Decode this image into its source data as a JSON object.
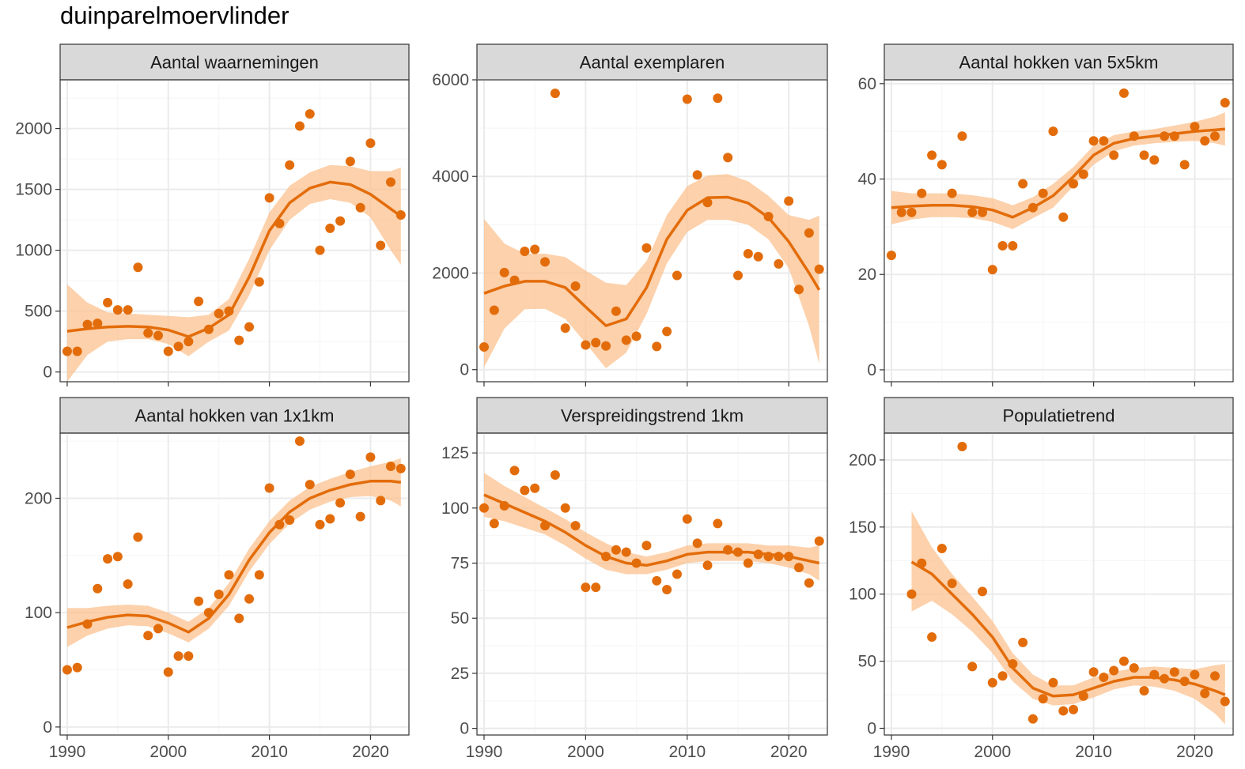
{
  "title": "duinparelmoervlinder",
  "colors": {
    "point": "#e36c0a",
    "line": "#e36c0a",
    "ribbon": "#fbc18f",
    "strip": "#d9d9d9",
    "grid_major": "#ebebeb",
    "grid_minor": "#f5f5f5"
  },
  "chart_data": [
    {
      "type": "scatter",
      "title": "Aantal waarnemingen",
      "xlim": [
        1989.3,
        2023.8
      ],
      "ylim": [
        -80,
        2400
      ],
      "xticks": [
        1990,
        2000,
        2010,
        2020
      ],
      "yticks": [
        0,
        500,
        1000,
        1500,
        2000
      ],
      "points": {
        "x": [
          1990,
          1991,
          1992,
          1993,
          1994,
          1995,
          1996,
          1997,
          1998,
          1999,
          2000,
          2001,
          2002,
          2003,
          2004,
          2005,
          2006,
          2007,
          2008,
          2009,
          2010,
          2011,
          2012,
          2013,
          2014,
          2015,
          2016,
          2017,
          2018,
          2019,
          2020,
          2021,
          2022,
          2023
        ],
        "y": [
          170,
          170,
          390,
          400,
          570,
          510,
          510,
          860,
          320,
          300,
          170,
          210,
          250,
          580,
          350,
          480,
          500,
          260,
          370,
          740,
          1430,
          1220,
          1700,
          2020,
          2120,
          1000,
          1180,
          1240,
          1730,
          1350,
          1880,
          1040,
          1560,
          1290
        ]
      },
      "trend": {
        "x": [
          1990,
          1992,
          1994,
          1996,
          1998,
          2000,
          2002,
          2004,
          2006,
          2008,
          2010,
          2012,
          2014,
          2016,
          2018,
          2020,
          2022,
          2023
        ],
        "y": [
          335,
          355,
          370,
          375,
          370,
          345,
          290,
          360,
          470,
          780,
          1160,
          1390,
          1510,
          1560,
          1540,
          1460,
          1340,
          1280
        ],
        "lower": [
          -80,
          140,
          250,
          270,
          270,
          230,
          130,
          250,
          340,
          630,
          1000,
          1250,
          1380,
          1420,
          1390,
          1270,
          1000,
          880
        ],
        "upper": [
          720,
          570,
          490,
          480,
          470,
          460,
          450,
          470,
          600,
          930,
          1310,
          1530,
          1640,
          1700,
          1690,
          1650,
          1650,
          1680
        ]
      }
    },
    {
      "type": "scatter",
      "title": "Aantal exemplaren",
      "xlim": [
        1989.3,
        2023.8
      ],
      "ylim": [
        -250,
        6000
      ],
      "xticks": [
        1990,
        2000,
        2010,
        2020
      ],
      "yticks": [
        0,
        2000,
        4000,
        6000
      ],
      "points": {
        "x": [
          1990,
          1991,
          1992,
          1993,
          1994,
          1995,
          1996,
          1997,
          1998,
          1999,
          2000,
          2001,
          2002,
          2003,
          2004,
          2005,
          2006,
          2007,
          2008,
          2009,
          2010,
          2011,
          2012,
          2013,
          2014,
          2015,
          2016,
          2017,
          2018,
          2019,
          2020,
          2021,
          2022,
          2023
        ],
        "y": [
          470,
          1230,
          2010,
          1850,
          2450,
          2490,
          2230,
          5720,
          860,
          1730,
          510,
          560,
          490,
          1210,
          610,
          690,
          2520,
          480,
          790,
          1950,
          5600,
          4030,
          3460,
          5620,
          4390,
          1950,
          2400,
          2340,
          3170,
          2190,
          3490,
          1660,
          2830,
          2080
        ]
      },
      "trend": {
        "x": [
          1990,
          1992,
          1994,
          1996,
          1998,
          2000,
          2002,
          2004,
          2006,
          2008,
          2010,
          2012,
          2014,
          2016,
          2018,
          2020,
          2022,
          2023
        ],
        "y": [
          1580,
          1730,
          1830,
          1830,
          1700,
          1300,
          910,
          1050,
          1700,
          2700,
          3300,
          3560,
          3570,
          3450,
          3150,
          2650,
          2000,
          1650
        ],
        "lower": [
          50,
          850,
          1250,
          1260,
          1050,
          550,
          30,
          350,
          1150,
          2200,
          2850,
          3100,
          3100,
          3000,
          2700,
          2100,
          900,
          120
        ],
        "upper": [
          3120,
          2610,
          2400,
          2400,
          2330,
          2050,
          1800,
          1750,
          2250,
          3200,
          3800,
          4020,
          4050,
          3900,
          3600,
          3200,
          3100,
          3190
        ]
      }
    },
    {
      "type": "scatter",
      "title": "Aantal hokken van 5x5km",
      "xlim": [
        1989.3,
        2023.8
      ],
      "ylim": [
        -2.5,
        60.8
      ],
      "xticks": [
        1990,
        2000,
        2010,
        2020
      ],
      "yticks": [
        0,
        20,
        40,
        60
      ],
      "points": {
        "x": [
          1990,
          1991,
          1992,
          1993,
          1994,
          1995,
          1996,
          1997,
          1998,
          1999,
          2000,
          2001,
          2002,
          2003,
          2004,
          2005,
          2006,
          2007,
          2008,
          2009,
          2010,
          2011,
          2012,
          2013,
          2014,
          2015,
          2016,
          2017,
          2018,
          2019,
          2020,
          2021,
          2022,
          2023
        ],
        "y": [
          24,
          33,
          33,
          37,
          45,
          43,
          37,
          49,
          33,
          33,
          21,
          26,
          26,
          39,
          34,
          37,
          50,
          32,
          39,
          41,
          48,
          48,
          45,
          58,
          49,
          45,
          44,
          49,
          49,
          43,
          51,
          48,
          49,
          56
        ]
      },
      "trend": {
        "x": [
          1990,
          1992,
          1994,
          1996,
          1998,
          2000,
          2002,
          2004,
          2006,
          2008,
          2010,
          2012,
          2014,
          2016,
          2018,
          2020,
          2022,
          2023
        ],
        "y": [
          34,
          34.3,
          34.5,
          34.5,
          34.2,
          33.5,
          32,
          34,
          36.5,
          40.5,
          45,
          47.5,
          48.5,
          49,
          49.5,
          50,
          50.3,
          50.5
        ],
        "lower": [
          30.5,
          31.5,
          32,
          32,
          31.8,
          31,
          29.5,
          31.8,
          34,
          38.5,
          43,
          45.8,
          47,
          47.5,
          47.8,
          48,
          47.5,
          47
        ],
        "upper": [
          37.5,
          37,
          37,
          37,
          36.6,
          36,
          34.5,
          36.2,
          39,
          42.5,
          47,
          49.2,
          50,
          50.5,
          51.2,
          52,
          53.1,
          54
        ]
      }
    },
    {
      "type": "scatter",
      "title": "Aantal hokken van 1x1km",
      "xlim": [
        1989.3,
        2023.8
      ],
      "ylim": [
        -7,
        257
      ],
      "xticks": [
        1990,
        2000,
        2010,
        2020
      ],
      "yticks": [
        0,
        100,
        200
      ],
      "points": {
        "x": [
          1990,
          1991,
          1992,
          1993,
          1994,
          1995,
          1996,
          1997,
          1998,
          1999,
          2000,
          2001,
          2002,
          2003,
          2004,
          2005,
          2006,
          2007,
          2008,
          2009,
          2010,
          2011,
          2012,
          2013,
          2014,
          2015,
          2016,
          2017,
          2018,
          2019,
          2020,
          2021,
          2022,
          2023
        ],
        "y": [
          50,
          52,
          90,
          121,
          147,
          149,
          125,
          166,
          80,
          86,
          48,
          62,
          62,
          110,
          100,
          116,
          133,
          95,
          112,
          133,
          209,
          177,
          181,
          250,
          212,
          177,
          182,
          196,
          221,
          184,
          236,
          198,
          228,
          226
        ]
      },
      "trend": {
        "x": [
          1990,
          1992,
          1994,
          1996,
          1998,
          2000,
          2002,
          2004,
          2006,
          2008,
          2010,
          2012,
          2014,
          2016,
          2018,
          2020,
          2022,
          2023
        ],
        "y": [
          87,
          92,
          96,
          98,
          97,
          91,
          83,
          95,
          116,
          146,
          170,
          188,
          200,
          207,
          212,
          215,
          215,
          214
        ],
        "lower": [
          70,
          80,
          86,
          89,
          88,
          82,
          74,
          86,
          106,
          136,
          160,
          178,
          190,
          197,
          201,
          202,
          198,
          193
        ],
        "upper": [
          104,
          104,
          106,
          107,
          106,
          100,
          92,
          104,
          126,
          156,
          180,
          198,
          210,
          217,
          223,
          228,
          232,
          235
        ]
      }
    },
    {
      "type": "scatter",
      "title": "Verspreidingstrend 1km",
      "xlim": [
        1989.3,
        2023.8
      ],
      "ylim": [
        -3,
        134
      ],
      "xticks": [
        1990,
        2000,
        2010,
        2020
      ],
      "yticks": [
        0,
        25,
        50,
        75,
        100,
        125
      ],
      "points": {
        "x": [
          1990,
          1991,
          1992,
          1993,
          1994,
          1995,
          1996,
          1997,
          1998,
          1999,
          2000,
          2001,
          2002,
          2003,
          2004,
          2005,
          2006,
          2007,
          2008,
          2009,
          2010,
          2011,
          2012,
          2013,
          2014,
          2015,
          2016,
          2017,
          2018,
          2019,
          2020,
          2021,
          2022,
          2023
        ],
        "y": [
          100,
          93,
          101,
          117,
          108,
          109,
          92,
          115,
          100,
          92,
          64,
          64,
          78,
          81,
          80,
          75,
          83,
          67,
          63,
          70,
          95,
          84,
          74,
          93,
          81,
          80,
          75,
          79,
          78,
          78,
          78,
          73,
          66,
          85
        ]
      },
      "trend": {
        "x": [
          1990,
          1992,
          1994,
          1996,
          1998,
          2000,
          2002,
          2004,
          2006,
          2008,
          2010,
          2012,
          2014,
          2016,
          2018,
          2020,
          2022,
          2023
        ],
        "y": [
          106,
          102,
          98,
          94,
          89,
          83,
          78,
          75,
          74,
          76,
          79,
          80,
          80,
          80,
          79,
          78,
          76,
          75
        ],
        "lower": [
          96,
          94,
          91,
          88,
          83,
          77,
          72,
          70,
          70,
          72,
          75,
          76,
          76,
          76,
          75,
          73,
          70,
          67
        ],
        "upper": [
          116,
          110,
          105,
          100,
          95,
          89,
          84,
          80,
          78,
          80,
          83,
          84,
          84,
          84,
          83,
          83,
          82,
          83
        ]
      }
    },
    {
      "type": "scatter",
      "title": "Populatietrend",
      "xlim": [
        1989.3,
        2023.8
      ],
      "ylim": [
        -5,
        220
      ],
      "xticks": [
        1990,
        2000,
        2010,
        2020
      ],
      "yticks": [
        0,
        50,
        100,
        150,
        200
      ],
      "points": {
        "x": [
          1992,
          1993,
          1994,
          1995,
          1996,
          1997,
          1998,
          1999,
          2000,
          2001,
          2002,
          2003,
          2004,
          2005,
          2006,
          2007,
          2008,
          2009,
          2010,
          2011,
          2012,
          2013,
          2014,
          2015,
          2016,
          2017,
          2018,
          2019,
          2020,
          2021,
          2022,
          2023
        ],
        "y": [
          100,
          123,
          68,
          134,
          108,
          210,
          46,
          102,
          34,
          39,
          48,
          64,
          7,
          22,
          34,
          13,
          14,
          24,
          42,
          38,
          43,
          50,
          45,
          28,
          40,
          37,
          42,
          35,
          40,
          26,
          39,
          20
        ]
      },
      "trend": {
        "x": [
          1992,
          1994,
          1996,
          1998,
          2000,
          2002,
          2004,
          2006,
          2008,
          2010,
          2012,
          2014,
          2016,
          2018,
          2020,
          2022,
          2023
        ],
        "y": [
          124,
          115,
          100,
          85,
          68,
          45,
          30,
          24,
          25,
          30,
          35,
          38,
          38,
          36,
          33,
          28,
          25
        ],
        "lower": [
          87,
          95,
          85,
          72,
          56,
          35,
          22,
          17,
          18,
          23,
          29,
          32,
          31,
          28,
          22,
          11,
          3
        ],
        "upper": [
          162,
          135,
          115,
          98,
          80,
          56,
          40,
          32,
          32,
          38,
          42,
          45,
          46,
          45,
          44,
          47,
          48
        ]
      }
    }
  ]
}
